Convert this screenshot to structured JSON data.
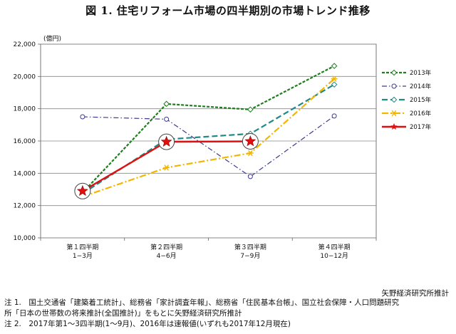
{
  "chart_data": {
    "type": "line",
    "title": "図 1. 住宅リフォーム市場の四半期別の市場トレンド推移",
    "ylabel": "(億円)",
    "ylim": [
      10000,
      22000
    ],
    "yticks": [
      10000,
      12000,
      14000,
      16000,
      18000,
      20000,
      22000
    ],
    "ytick_labels": [
      "10,000",
      "12,000",
      "14,000",
      "16,000",
      "18,000",
      "20,000",
      "22,000"
    ],
    "categories": [
      {
        "line1": "第１四半期",
        "line2": "1−3月"
      },
      {
        "line1": "第２四半期",
        "line2": "4−6月"
      },
      {
        "line1": "第３四半期",
        "line2": "7−9月"
      },
      {
        "line1": "第４四半期",
        "line2": "10−12月"
      }
    ],
    "grid": "horizontal",
    "legend_position": "right",
    "series": [
      {
        "name": "2013年",
        "color": "#1e7d1e",
        "dash": "4,2",
        "width": 2.2,
        "marker": "diamond-open",
        "values": [
          12800,
          18300,
          17950,
          20650
        ]
      },
      {
        "name": "2014年",
        "color": "#3d3a8c",
        "dash": "7,3,1.5,3",
        "width": 1.2,
        "marker": "circle-open",
        "values": [
          17500,
          17350,
          13800,
          17550
        ]
      },
      {
        "name": "2015年",
        "color": "#1e8a86",
        "dash": "8,4",
        "width": 2.2,
        "marker": "diamond-open",
        "values": [
          12750,
          16100,
          16450,
          19500
        ]
      },
      {
        "name": "2016年",
        "color": "#f2b600",
        "dash": "9,3,2,3",
        "width": 2.2,
        "marker": "asterisk",
        "values": [
          12550,
          14350,
          15250,
          19850
        ]
      },
      {
        "name": "2017年",
        "color": "#e01010",
        "dash": "",
        "width": 2.4,
        "marker": "star",
        "values": [
          12900,
          15950,
          15980,
          null
        ]
      }
    ]
  },
  "source": "矢野経済研究所推計",
  "notes": [
    "注 1.　国土交通省「建築着工統計」、総務省「家計調査年報」、総務省「住民基本台帳」、国立社会保障・人口問題研究",
    "所「日本の世帯数の将来推計(全国推計)」をもとに矢野経済研究所推計",
    "注 2.　2017年第1〜3四半期(1〜9月)、2016年は速報値(いずれも2017年12月現在)"
  ]
}
